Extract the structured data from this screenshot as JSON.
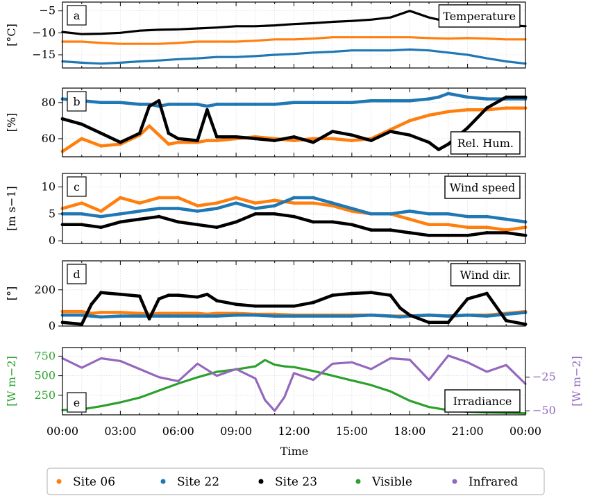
{
  "xaxis": {
    "label": "Time",
    "ticks": [
      "00:00",
      "03:00",
      "06:00",
      "09:00",
      "12:00",
      "15:00",
      "18:00",
      "21:00",
      "00:00"
    ],
    "range_hours": [
      0,
      24
    ]
  },
  "colors": {
    "site06": "#ff7f0e",
    "site22": "#1f77b4",
    "site23": "#000000",
    "visible": "#2ca02c",
    "infrared": "#9467bd"
  },
  "legend": [
    {
      "label": "Site 06",
      "color": "#ff7f0e"
    },
    {
      "label": "Site 22",
      "color": "#1f77b4"
    },
    {
      "label": "Site 23",
      "color": "#000000"
    },
    {
      "label": "Visible",
      "color": "#2ca02c"
    },
    {
      "label": "Infrared",
      "color": "#9467bd"
    }
  ],
  "chart_data": [
    {
      "type": "line",
      "panel": "a",
      "title": "Temperature",
      "ylabel": "[°C]",
      "ylim": [
        -18,
        -3
      ],
      "yticks": [
        -15,
        -10,
        -5
      ],
      "grid": true,
      "x": [
        0,
        1,
        2,
        3,
        4,
        5,
        6,
        7,
        8,
        9,
        10,
        11,
        12,
        13,
        14,
        15,
        16,
        17,
        18,
        19,
        20,
        21,
        22,
        23,
        24
      ],
      "series": [
        {
          "name": "Site 06",
          "values": [
            -12,
            -12,
            -12.3,
            -12.5,
            -12.5,
            -12.5,
            -12.3,
            -12,
            -12,
            -12,
            -11.8,
            -11.5,
            -11.5,
            -11.3,
            -11,
            -11,
            -11,
            -11,
            -11,
            -11.2,
            -11.3,
            -11.2,
            -11.3,
            -11.5,
            -11.5
          ]
        },
        {
          "name": "Site 22",
          "values": [
            -16.5,
            -16.8,
            -17,
            -16.8,
            -16.5,
            -16.3,
            -16,
            -15.8,
            -15.5,
            -15.5,
            -15.3,
            -15,
            -14.8,
            -14.5,
            -14.3,
            -14,
            -14,
            -14,
            -13.8,
            -14,
            -14.5,
            -15,
            -15.8,
            -16.5,
            -17
          ]
        },
        {
          "name": "Site 23",
          "values": [
            -9.8,
            -10.3,
            -10.2,
            -10,
            -9.5,
            -9.3,
            -9.2,
            -9,
            -8.8,
            -8.5,
            -8.5,
            -8.3,
            -8,
            -7.8,
            -7.5,
            -7.3,
            -7,
            -6.5,
            -5,
            -6.5,
            -7.5,
            -8,
            -8,
            -8.2,
            -8.5
          ]
        }
      ]
    },
    {
      "type": "scatter",
      "panel": "b",
      "title": "Rel. Hum.",
      "ylabel": "[%]",
      "ylim": [
        50,
        88
      ],
      "yticks": [
        60,
        80
      ],
      "grid": true,
      "x": [
        0,
        1,
        2,
        3,
        4,
        4.5,
        5,
        5.5,
        6,
        7,
        7.5,
        8,
        9,
        10,
        11,
        12,
        13,
        14,
        15,
        16,
        17,
        18,
        19,
        19.5,
        20,
        21,
        22,
        23,
        24
      ],
      "series": [
        {
          "name": "Site 06",
          "values": [
            53,
            60,
            56,
            57,
            62,
            67,
            62,
            57,
            58,
            58,
            59,
            59,
            60,
            61,
            60,
            59,
            60,
            60,
            59,
            60,
            65,
            70,
            73,
            74,
            75,
            76,
            76,
            77,
            77
          ]
        },
        {
          "name": "Site 22",
          "values": [
            82,
            81,
            80,
            80,
            79,
            79,
            78,
            79,
            79,
            79,
            78,
            79,
            79,
            79,
            79,
            80,
            80,
            80,
            80,
            81,
            81,
            81,
            82,
            83,
            85,
            83,
            82,
            82,
            82
          ]
        },
        {
          "name": "Site 23",
          "values": [
            71,
            68,
            63,
            58,
            63,
            78,
            81,
            63,
            60,
            59,
            76,
            61,
            61,
            60,
            59,
            61,
            58,
            64,
            62,
            59,
            64,
            62,
            58,
            54,
            57,
            66,
            77,
            83,
            83
          ]
        }
      ]
    },
    {
      "type": "scatter",
      "panel": "c",
      "title": "Wind speed",
      "ylabel": "[m s−1]",
      "ylim": [
        -0.5,
        12.5
      ],
      "yticks": [
        0,
        5,
        10
      ],
      "grid": true,
      "x": [
        0,
        1,
        2,
        3,
        4,
        5,
        6,
        7,
        8,
        9,
        10,
        11,
        12,
        13,
        14,
        15,
        16,
        17,
        18,
        19,
        20,
        21,
        22,
        23,
        24
      ],
      "series": [
        {
          "name": "Site 06",
          "values": [
            6,
            7,
            5.5,
            8,
            7,
            8,
            8,
            6.5,
            7,
            8,
            7,
            7.5,
            7,
            7,
            6.5,
            5.5,
            5,
            5,
            4,
            3,
            3,
            2.5,
            2.5,
            2,
            2.5
          ]
        },
        {
          "name": "Site 22",
          "values": [
            5,
            5,
            4.5,
            5,
            5.5,
            6,
            6,
            5.5,
            6,
            7,
            6,
            6.5,
            8,
            8,
            7,
            6,
            5,
            5,
            5.5,
            5,
            5,
            4.5,
            4.5,
            4,
            3.5
          ]
        },
        {
          "name": "Site 23",
          "values": [
            3,
            3,
            2.5,
            3.5,
            4,
            4.5,
            3.5,
            3,
            2.5,
            3.5,
            5,
            5,
            4.5,
            3.5,
            3.5,
            3,
            2,
            2,
            1.5,
            1,
            1,
            1,
            1.5,
            1.5,
            1
          ]
        }
      ]
    },
    {
      "type": "scatter",
      "panel": "d",
      "title": "Wind dir.",
      "ylabel": "[°]",
      "ylim": [
        0,
        360
      ],
      "yticks": [
        0,
        200
      ],
      "grid": true,
      "x": [
        0,
        1,
        1.5,
        2,
        3,
        4,
        4.5,
        5,
        5.5,
        6,
        7,
        7.5,
        8,
        9,
        10,
        11,
        12,
        13,
        14,
        15,
        16,
        17,
        17.5,
        18,
        19,
        20,
        21,
        22,
        23,
        24
      ],
      "series": [
        {
          "name": "Site 06",
          "values": [
            80,
            80,
            70,
            75,
            75,
            70,
            65,
            70,
            70,
            70,
            70,
            65,
            70,
            70,
            65,
            65,
            60,
            60,
            60,
            60,
            60,
            55,
            55,
            55,
            60,
            55,
            60,
            60,
            70,
            80
          ]
        },
        {
          "name": "Site 22",
          "values": [
            60,
            60,
            55,
            50,
            55,
            55,
            55,
            55,
            55,
            55,
            55,
            55,
            55,
            60,
            60,
            55,
            55,
            55,
            55,
            55,
            60,
            55,
            50,
            55,
            60,
            55,
            60,
            55,
            65,
            75
          ]
        },
        {
          "name": "Site 23",
          "values": [
            20,
            10,
            120,
            185,
            175,
            165,
            40,
            150,
            170,
            170,
            160,
            175,
            140,
            120,
            110,
            110,
            110,
            130,
            170,
            180,
            185,
            170,
            100,
            60,
            20,
            20,
            150,
            180,
            30,
            10
          ]
        }
      ]
    },
    {
      "type": "line",
      "panel": "e",
      "title": "Irradiance",
      "ylabel": "[W m−2]",
      "ylabel_right": "[W m−2]",
      "ylim": [
        0,
        860
      ],
      "yticks": [
        250,
        500,
        750
      ],
      "y2lim": [
        -53,
        -3
      ],
      "y2ticks": [
        -50,
        -25
      ],
      "grid": true,
      "x": [
        0,
        1,
        2,
        3,
        4,
        5,
        6,
        7,
        8,
        9,
        10,
        10.5,
        11,
        11.5,
        12,
        13,
        14,
        15,
        16,
        17,
        18,
        19,
        20,
        21,
        22,
        23,
        24
      ],
      "series": [
        {
          "name": "Visible",
          "axis": "left",
          "values": [
            60,
            70,
            110,
            160,
            220,
            310,
            400,
            480,
            550,
            580,
            620,
            700,
            640,
            620,
            610,
            560,
            500,
            440,
            380,
            300,
            180,
            100,
            60,
            40,
            30,
            25,
            20
          ]
        },
        {
          "name": "Infrared",
          "axis": "right",
          "values": [
            -11,
            -18,
            -11,
            -13,
            -19,
            -25,
            -28,
            -15,
            -24,
            -19,
            -26,
            -42,
            -50,
            -40,
            -22,
            -27,
            -15,
            -14,
            -19,
            -11,
            -12,
            -27,
            -9,
            -14,
            -21,
            -16,
            -30
          ]
        }
      ]
    }
  ]
}
